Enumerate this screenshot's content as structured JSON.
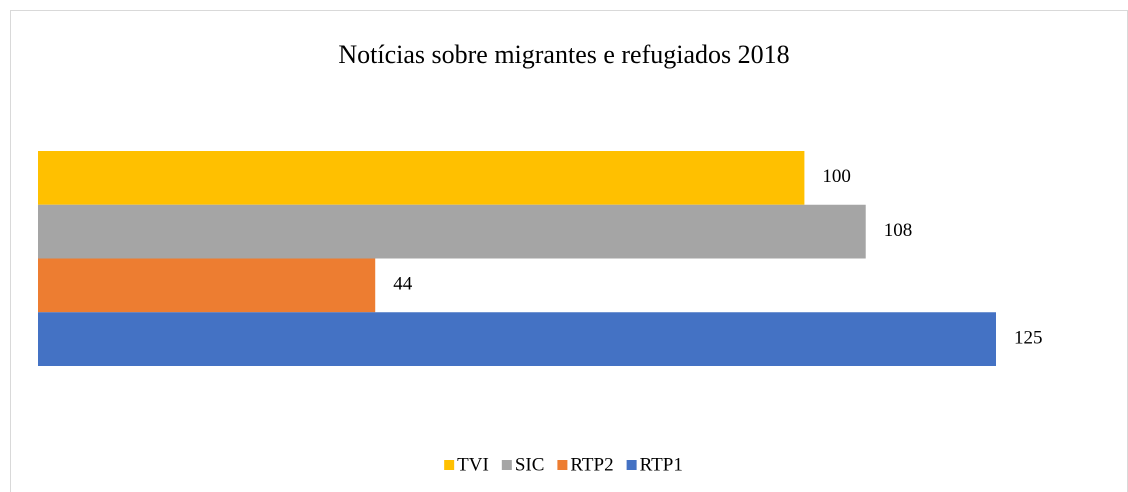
{
  "chart_data": {
    "type": "bar",
    "title": "Notícias sobre migrantes e refugiados 2018",
    "categories": [
      null
    ],
    "series": [
      {
        "name": "TVI",
        "color": "#ffc000",
        "values": [
          100
        ]
      },
      {
        "name": "SIC",
        "color": "#a5a5a5",
        "values": [
          108
        ]
      },
      {
        "name": "RTP2",
        "color": "#ed7d31",
        "values": [
          44
        ]
      },
      {
        "name": "RTP1",
        "color": "#4472c4",
        "values": [
          125
        ]
      }
    ],
    "legend": "bottom"
  }
}
